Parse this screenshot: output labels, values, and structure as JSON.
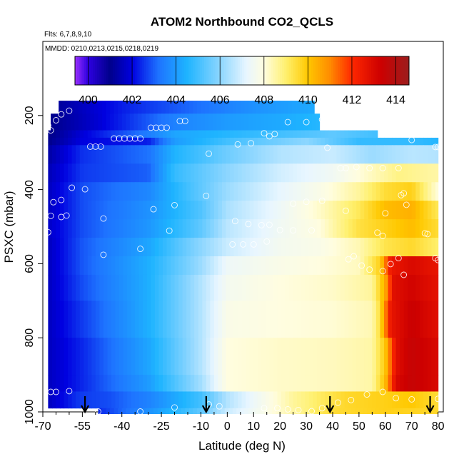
{
  "chart_data": {
    "type": "heatmap",
    "title": "ATOM2 Northbound CO2_QCLS",
    "flights_note": "Flts: 6,7,8,9,10",
    "dates_note": "MMDD: 0210,0213,0215,0218,0219",
    "xlabel": "Latitude (deg N)",
    "ylabel": "PSXC (mbar)",
    "xlim": [
      -70,
      82
    ],
    "ylim": [
      1000,
      0
    ],
    "x_ticks": [
      -70,
      -55,
      -40,
      -25,
      -10,
      0,
      10,
      20,
      30,
      40,
      50,
      60,
      70,
      80
    ],
    "y_ticks": [
      200,
      400,
      600,
      800,
      1000
    ],
    "colorbar": {
      "ticks": [
        400,
        402,
        404,
        406,
        408,
        410,
        412,
        414
      ],
      "range": [
        399.4,
        414.6
      ],
      "stops": [
        {
          "v": 399.4,
          "c": "#9b30ff"
        },
        {
          "v": 400.0,
          "c": "#2d00e0"
        },
        {
          "v": 401.0,
          "c": "#00008b"
        },
        {
          "v": 402.0,
          "c": "#0000e0"
        },
        {
          "v": 403.2,
          "c": "#1e73ff"
        },
        {
          "v": 404.5,
          "c": "#1eb4ff"
        },
        {
          "v": 406.0,
          "c": "#8cd6ff"
        },
        {
          "v": 407.2,
          "c": "#e8f6ff"
        },
        {
          "v": 408.0,
          "c": "#fffde0"
        },
        {
          "v": 409.0,
          "c": "#fff06e"
        },
        {
          "v": 410.0,
          "c": "#ffc800"
        },
        {
          "v": 411.0,
          "c": "#ff8c00"
        },
        {
          "v": 412.0,
          "c": "#ff2800"
        },
        {
          "v": 413.3,
          "c": "#cd0000"
        },
        {
          "v": 414.6,
          "c": "#9b1e1e"
        }
      ]
    },
    "profile_arrow_latitudes": [
      -54,
      -8,
      39,
      77
    ],
    "bands": [
      {
        "p": [
          160,
          195
        ],
        "lat": [
          -64,
          33
        ],
        "nodes": [
          [
            -64,
            401.2
          ],
          [
            -40,
            402.3
          ],
          [
            -10,
            403.2
          ],
          [
            10,
            403.8
          ],
          [
            33,
            404.3
          ]
        ]
      },
      {
        "p": [
          195,
          240
        ],
        "lat": [
          -67,
          35
        ],
        "nodes": [
          [
            -67,
            401.0
          ],
          [
            -50,
            401.8
          ],
          [
            -20,
            403.5
          ],
          [
            0,
            404.0
          ],
          [
            20,
            404.3
          ],
          [
            35,
            404.6
          ]
        ]
      },
      {
        "p": [
          240,
          260
        ],
        "lat": [
          -68,
          57
        ],
        "nodes": [
          [
            -68,
            400.9
          ],
          [
            -55,
            401.9
          ],
          [
            -30,
            403.4
          ],
          [
            -20,
            404.2
          ],
          [
            0,
            404.6
          ],
          [
            20,
            405.0
          ],
          [
            40,
            405.4
          ],
          [
            57,
            405.0
          ]
        ]
      },
      {
        "p": [
          260,
          280
        ],
        "lat": [
          -68,
          80
        ],
        "nodes": [
          [
            -68,
            401.0
          ],
          [
            -55,
            402.0
          ],
          [
            -30,
            402.3
          ],
          [
            -20,
            404.0
          ],
          [
            0,
            405.0
          ],
          [
            30,
            406.0
          ],
          [
            50,
            404.8
          ],
          [
            70,
            404.8
          ],
          [
            80,
            404.6
          ]
        ]
      },
      {
        "p": [
          280,
          330
        ],
        "lat": [
          -68,
          80
        ],
        "nodes": [
          [
            -68,
            401.3
          ],
          [
            -55,
            402.5
          ],
          [
            -30,
            403.2
          ],
          [
            -20,
            404.5
          ],
          [
            0,
            405.6
          ],
          [
            20,
            406.5
          ],
          [
            40,
            406.8
          ],
          [
            55,
            406.2
          ],
          [
            70,
            406.6
          ],
          [
            80,
            406.5
          ]
        ]
      },
      {
        "p": [
          330,
          380
        ],
        "lat": [
          -68,
          80
        ],
        "nodes": [
          [
            -68,
            401.5
          ],
          [
            -55,
            402.6
          ],
          [
            -30,
            403.0
          ],
          [
            -20,
            404.8
          ],
          [
            0,
            406.0
          ],
          [
            20,
            406.9
          ],
          [
            40,
            407.5
          ],
          [
            55,
            408.3
          ],
          [
            65,
            408.8
          ],
          [
            80,
            408.5
          ]
        ]
      },
      {
        "p": [
          380,
          430
        ],
        "lat": [
          -68,
          80
        ],
        "nodes": [
          [
            -68,
            401.6
          ],
          [
            -55,
            402.8
          ],
          [
            -30,
            403.6
          ],
          [
            -15,
            405.0
          ],
          [
            0,
            406.2
          ],
          [
            20,
            407.2
          ],
          [
            35,
            407.8
          ],
          [
            50,
            408.6
          ],
          [
            60,
            409.5
          ],
          [
            70,
            409.8
          ],
          [
            80,
            408.0
          ]
        ]
      },
      {
        "p": [
          430,
          480
        ],
        "lat": [
          -68,
          80
        ],
        "nodes": [
          [
            -68,
            401.6
          ],
          [
            -55,
            402.8
          ],
          [
            -30,
            403.8
          ],
          [
            -10,
            405.2
          ],
          [
            0,
            406.4
          ],
          [
            20,
            407.4
          ],
          [
            35,
            408.2
          ],
          [
            50,
            409.2
          ],
          [
            60,
            410.2
          ],
          [
            70,
            410.4
          ],
          [
            80,
            409.2
          ]
        ]
      },
      {
        "p": [
          480,
          530
        ],
        "lat": [
          -68,
          80
        ],
        "nodes": [
          [
            -68,
            401.7
          ],
          [
            -55,
            402.8
          ],
          [
            -30,
            403.9
          ],
          [
            -10,
            405.4
          ],
          [
            0,
            406.6
          ],
          [
            20,
            407.5
          ],
          [
            35,
            408.0
          ],
          [
            50,
            409.4
          ],
          [
            60,
            409.8
          ],
          [
            70,
            410.2
          ],
          [
            80,
            409.5
          ]
        ]
      },
      {
        "p": [
          530,
          580
        ],
        "lat": [
          -68,
          80
        ],
        "nodes": [
          [
            -68,
            401.6
          ],
          [
            -55,
            402.9
          ],
          [
            -30,
            404.2
          ],
          [
            -15,
            405.6
          ],
          [
            0,
            406.8
          ],
          [
            20,
            407.6
          ],
          [
            35,
            407.8
          ],
          [
            50,
            408.4
          ],
          [
            60,
            409.3
          ],
          [
            70,
            409.6
          ],
          [
            80,
            409.0
          ]
        ]
      },
      {
        "p": [
          580,
          630
        ],
        "lat": [
          -68,
          80
        ],
        "nodes": [
          [
            -68,
            401.6
          ],
          [
            -55,
            402.9
          ],
          [
            -30,
            404.4
          ],
          [
            -10,
            406.2
          ],
          [
            0,
            407.4
          ],
          [
            20,
            407.8
          ],
          [
            35,
            408.0
          ],
          [
            50,
            408.3
          ],
          [
            58,
            409.8
          ],
          [
            62,
            412.5
          ],
          [
            70,
            413.0
          ],
          [
            80,
            412.6
          ]
        ]
      },
      {
        "p": [
          630,
          700
        ],
        "lat": [
          -68,
          80
        ],
        "nodes": [
          [
            -68,
            401.6
          ],
          [
            -55,
            402.8
          ],
          [
            -30,
            404.4
          ],
          [
            -10,
            406.5
          ],
          [
            0,
            407.6
          ],
          [
            20,
            408.0
          ],
          [
            40,
            408.2
          ],
          [
            55,
            408.6
          ],
          [
            60,
            410.5
          ],
          [
            63,
            412.8
          ],
          [
            70,
            413.2
          ],
          [
            80,
            412.7
          ]
        ]
      },
      {
        "p": [
          700,
          800
        ],
        "lat": [
          -68,
          80
        ],
        "nodes": [
          [
            -68,
            401.6
          ],
          [
            -55,
            402.6
          ],
          [
            -30,
            404.4
          ],
          [
            -10,
            406.5
          ],
          [
            0,
            407.8
          ],
          [
            20,
            408.0
          ],
          [
            40,
            408.1
          ],
          [
            55,
            408.4
          ],
          [
            58,
            409.5
          ],
          [
            62,
            412.6
          ],
          [
            70,
            413.4
          ],
          [
            80,
            412.8
          ]
        ]
      },
      {
        "p": [
          800,
          900
        ],
        "lat": [
          -68,
          80
        ],
        "nodes": [
          [
            -68,
            401.6
          ],
          [
            -55,
            402.4
          ],
          [
            -30,
            404.2
          ],
          [
            -10,
            406.5
          ],
          [
            0,
            408.0
          ],
          [
            20,
            408.2
          ],
          [
            40,
            408.3
          ],
          [
            55,
            408.5
          ],
          [
            60,
            410.0
          ],
          [
            64,
            412.8
          ],
          [
            70,
            413.5
          ],
          [
            80,
            413.0
          ]
        ]
      },
      {
        "p": [
          900,
          945
        ],
        "lat": [
          -68,
          80
        ],
        "nodes": [
          [
            -68,
            401.6
          ],
          [
            -55,
            402.4
          ],
          [
            -30,
            404.0
          ],
          [
            -10,
            406.3
          ],
          [
            0,
            408.0
          ],
          [
            20,
            408.2
          ],
          [
            40,
            408.3
          ],
          [
            55,
            408.5
          ],
          [
            60,
            410.2
          ],
          [
            64,
            413.0
          ],
          [
            70,
            413.5
          ],
          [
            80,
            413.0
          ]
        ]
      },
      {
        "p": [
          945,
          990
        ],
        "lat": [
          -68,
          80
        ],
        "nodes": [
          [
            -68,
            401.6
          ],
          [
            -56,
            402.6
          ],
          [
            -45,
            402.8
          ],
          [
            -30,
            403.5
          ],
          [
            -10,
            405.0
          ],
          [
            0,
            406.5
          ],
          [
            15,
            407.8
          ],
          [
            25,
            408.6
          ],
          [
            45,
            409.6
          ],
          [
            60,
            409.8
          ],
          [
            70,
            410.0
          ],
          [
            80,
            409.5
          ]
        ]
      },
      {
        "p": [
          990,
          1005
        ],
        "lat": [
          -49,
          80
        ],
        "nodes": [
          [
            -49,
            402.4
          ],
          [
            -30,
            403.8
          ],
          [
            -10,
            405.4
          ],
          [
            0,
            406.8
          ],
          [
            20,
            408.2
          ],
          [
            40,
            409.5
          ],
          [
            60,
            409.8
          ],
          [
            80,
            409.6
          ]
        ]
      }
    ],
    "sample_points": [
      [
        -63,
        197
      ],
      [
        -60,
        187
      ],
      [
        -65,
        213
      ],
      [
        -68,
        227
      ],
      [
        -67,
        240
      ],
      [
        -43,
        262
      ],
      [
        -41,
        262
      ],
      [
        -39,
        262
      ],
      [
        -37,
        262
      ],
      [
        -35,
        262
      ],
      [
        -33,
        262
      ],
      [
        -29,
        233
      ],
      [
        -27,
        233
      ],
      [
        -25,
        233
      ],
      [
        -23,
        233
      ],
      [
        -18,
        215
      ],
      [
        -16,
        215
      ],
      [
        -52,
        284
      ],
      [
        -50,
        284
      ],
      [
        -48,
        284
      ],
      [
        -7,
        303
      ],
      [
        4,
        278
      ],
      [
        9,
        275
      ],
      [
        14,
        248
      ],
      [
        18,
        250
      ],
      [
        16,
        256
      ],
      [
        23,
        218
      ],
      [
        30,
        218
      ],
      [
        36,
        211
      ],
      [
        38,
        287
      ],
      [
        43,
        342
      ],
      [
        45,
        342
      ],
      [
        49,
        339
      ],
      [
        54,
        342
      ],
      [
        59,
        342
      ],
      [
        65,
        342
      ],
      [
        70,
        266
      ],
      [
        79,
        285
      ],
      [
        80,
        285
      ],
      [
        -59,
        395
      ],
      [
        -54,
        399
      ],
      [
        -63,
        428
      ],
      [
        -66,
        434
      ],
      [
        -67,
        471
      ],
      [
        -63,
        474
      ],
      [
        -61,
        470
      ],
      [
        -68,
        515
      ],
      [
        -8,
        417
      ],
      [
        -20,
        442
      ],
      [
        -28,
        453
      ],
      [
        -47,
        478
      ],
      [
        -22,
        511
      ],
      [
        3,
        485
      ],
      [
        8,
        493
      ],
      [
        13,
        496
      ],
      [
        16,
        495
      ],
      [
        20,
        509
      ],
      [
        25,
        510
      ],
      [
        32,
        510
      ],
      [
        -33,
        560
      ],
      [
        -47,
        576
      ],
      [
        2,
        548
      ],
      [
        6,
        548
      ],
      [
        10,
        548
      ],
      [
        15,
        540
      ],
      [
        25,
        438
      ],
      [
        30,
        433
      ],
      [
        36,
        430
      ],
      [
        45,
        457
      ],
      [
        60,
        464
      ],
      [
        66,
        415
      ],
      [
        67,
        410
      ],
      [
        68,
        441
      ],
      [
        75,
        518
      ],
      [
        59,
        525
      ],
      [
        57,
        516
      ],
      [
        48,
        580
      ],
      [
        46,
        588
      ],
      [
        51,
        605
      ],
      [
        54,
        616
      ],
      [
        59,
        620
      ],
      [
        62,
        601
      ],
      [
        65,
        585
      ],
      [
        67,
        630
      ],
      [
        76,
        520
      ],
      [
        79,
        585
      ],
      [
        80,
        590
      ],
      [
        -67,
        946
      ],
      [
        -65,
        946
      ],
      [
        -60,
        944
      ],
      [
        -49,
        999
      ],
      [
        -33,
        999
      ],
      [
        -20,
        988
      ],
      [
        -7,
        980
      ],
      [
        -3,
        985
      ],
      [
        14,
        990
      ],
      [
        19,
        990
      ],
      [
        23,
        993
      ],
      [
        27,
        995
      ],
      [
        32,
        998
      ],
      [
        36,
        990
      ],
      [
        42,
        975
      ],
      [
        47,
        968
      ],
      [
        53,
        953
      ],
      [
        59,
        946
      ],
      [
        64,
        963
      ],
      [
        70,
        966
      ],
      [
        80,
        965
      ]
    ]
  }
}
